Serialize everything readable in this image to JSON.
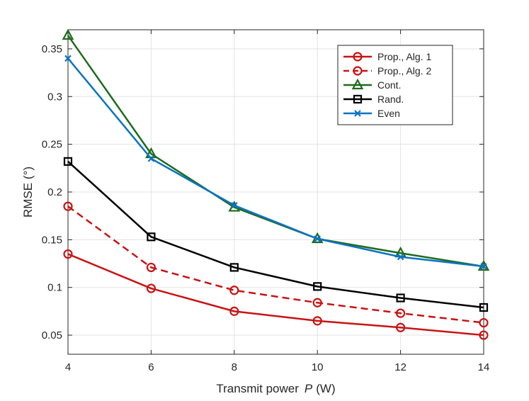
{
  "chart_data": {
    "type": "line",
    "title": "",
    "xlabel": {
      "prefix": "Transmit power",
      "symbol": "P",
      "unit": "(W)"
    },
    "ylabel": "RMSE (°)",
    "xlim": [
      4,
      14
    ],
    "ylim": [
      0.03,
      0.37
    ],
    "x": [
      4,
      6,
      8,
      10,
      12,
      14
    ],
    "x_ticks": [
      4,
      6,
      8,
      10,
      12,
      14
    ],
    "x_tick_labels": [
      "4",
      "6",
      "8",
      "10",
      "12",
      "14"
    ],
    "y_ticks": [
      0.05,
      0.1,
      0.15,
      0.2,
      0.25,
      0.3,
      0.35
    ],
    "y_tick_labels": [
      "0.05",
      "0.1",
      "0.15",
      "0.2",
      "0.25",
      "0.3",
      "0.35"
    ],
    "grid": true,
    "legend_position": "top-right",
    "series": [
      {
        "name": "Prop., Alg. 1",
        "color": "#c81414",
        "marker": "circle",
        "dash": "solid",
        "values": [
          0.135,
          0.099,
          0.075,
          0.065,
          0.058,
          0.05
        ]
      },
      {
        "name": "Prop., Alg. 2",
        "color": "#c81414",
        "marker": "circle",
        "dash": "dashed",
        "values": [
          0.185,
          0.121,
          0.097,
          0.084,
          0.073,
          0.063
        ]
      },
      {
        "name": "Cont.",
        "color": "#1e6b1e",
        "marker": "triangle",
        "dash": "solid",
        "values": [
          0.364,
          0.24,
          0.184,
          0.151,
          0.136,
          0.122
        ]
      },
      {
        "name": "Rand.",
        "color": "#000000",
        "marker": "square",
        "dash": "solid",
        "values": [
          0.232,
          0.153,
          0.121,
          0.101,
          0.089,
          0.079
        ]
      },
      {
        "name": "Even",
        "color": "#0b73c3",
        "marker": "x",
        "dash": "solid",
        "values": [
          0.34,
          0.235,
          0.186,
          0.151,
          0.132,
          0.122
        ]
      }
    ]
  }
}
